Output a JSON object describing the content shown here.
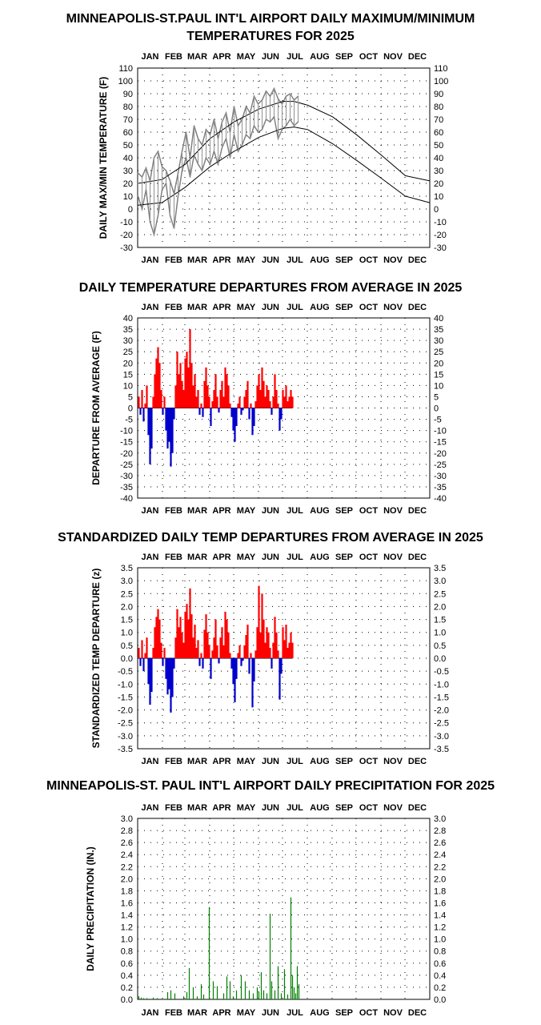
{
  "chart_data": [
    {
      "type": "line",
      "title": "MINNEAPOLIS-ST.PAUL INT'L AIRPORT DAILY MAXIMUM/MINIMUM TEMPERATURES FOR 2025",
      "title_lines": [
        "MINNEAPOLIS-ST.PAUL INT'L AIRPORT DAILY MAXIMUM/MINIMUM",
        "TEMPERATURES FOR 2025"
      ],
      "xlabel": "",
      "ylabel": "DAILY MAX/MIN TEMPERATURE (F)",
      "months": [
        "JAN",
        "FEB",
        "MAR",
        "APR",
        "MAY",
        "JUN",
        "JUL",
        "AUG",
        "SEP",
        "OCT",
        "NOV",
        "DEC"
      ],
      "ylim": [
        -30,
        110
      ],
      "yticks": [
        "110",
        "100",
        "90",
        "80",
        "70",
        "60",
        "50",
        "40",
        "30",
        "20",
        "10",
        "0",
        "-10",
        "-20",
        "-30"
      ],
      "grid": true,
      "series": [
        {
          "role": "observed_max",
          "color": "#808080",
          "x": [
            1,
            6,
            11,
            16,
            21,
            26,
            31,
            36,
            41,
            46,
            51,
            56,
            61,
            66,
            71,
            76,
            81,
            86,
            91,
            96,
            101,
            106,
            111,
            116,
            121,
            126,
            131,
            136,
            141,
            146,
            151,
            156,
            161,
            166,
            171,
            176,
            181,
            186,
            191,
            196,
            201
          ],
          "values": [
            28,
            25,
            32,
            22,
            40,
            45,
            33,
            30,
            22,
            12,
            28,
            45,
            60,
            40,
            65,
            55,
            50,
            62,
            58,
            70,
            55,
            68,
            75,
            60,
            80,
            65,
            70,
            80,
            75,
            88,
            82,
            85,
            92,
            88,
            94,
            86,
            82,
            88,
            90,
            85,
            88
          ]
        },
        {
          "role": "observed_min",
          "color": "#808080",
          "x": [
            1,
            6,
            11,
            16,
            21,
            26,
            31,
            36,
            41,
            46,
            51,
            56,
            61,
            66,
            71,
            76,
            81,
            86,
            91,
            96,
            101,
            106,
            111,
            116,
            121,
            126,
            131,
            136,
            141,
            146,
            151,
            156,
            161,
            166,
            171,
            176,
            181,
            186,
            191,
            196,
            201
          ],
          "values": [
            10,
            0,
            15,
            -10,
            -20,
            -5,
            15,
            20,
            -5,
            -15,
            10,
            30,
            40,
            25,
            42,
            35,
            30,
            40,
            35,
            45,
            35,
            48,
            55,
            40,
            58,
            45,
            50,
            58,
            55,
            65,
            60,
            62,
            70,
            68,
            72,
            55,
            62,
            65,
            70,
            65,
            68
          ]
        },
        {
          "role": "normal_max",
          "color": "#000000",
          "x": [
            1,
            31,
            60,
            91,
            121,
            152,
            182,
            196,
            213,
            244,
            274,
            305,
            335,
            365
          ],
          "values": [
            20,
            23,
            35,
            55,
            68,
            78,
            84,
            84,
            81,
            72,
            58,
            42,
            26,
            22
          ]
        },
        {
          "role": "normal_min",
          "color": "#000000",
          "x": [
            1,
            31,
            60,
            91,
            121,
            152,
            182,
            196,
            213,
            244,
            274,
            305,
            335,
            365
          ],
          "values": [
            3,
            5,
            17,
            33,
            45,
            56,
            63,
            64,
            62,
            51,
            38,
            24,
            10,
            5
          ]
        }
      ]
    },
    {
      "type": "bar",
      "title": "DAILY TEMPERATURE DEPARTURES FROM AVERAGE IN 2025",
      "xlabel": "",
      "ylabel": "DEPARTURE FROM AVERAGE (F)",
      "months": [
        "JAN",
        "FEB",
        "MAR",
        "APR",
        "MAY",
        "JUN",
        "JUL",
        "AUG",
        "SEP",
        "OCT",
        "NOV",
        "DEC"
      ],
      "ylim": [
        -40,
        40
      ],
      "yticks": [
        "40",
        "35",
        "30",
        "25",
        "20",
        "15",
        "10",
        "5",
        "0",
        "-5",
        "-10",
        "-15",
        "-20",
        "-25",
        "-30",
        "-35",
        "-40"
      ],
      "grid": true,
      "positive_color": "#ff0000",
      "negative_color": "#0000cc",
      "x": [
        2,
        4,
        6,
        8,
        10,
        12,
        14,
        16,
        18,
        20,
        22,
        24,
        26,
        28,
        30,
        32,
        34,
        36,
        38,
        40,
        42,
        44,
        46,
        48,
        50,
        52,
        54,
        56,
        58,
        60,
        62,
        64,
        66,
        68,
        70,
        72,
        74,
        76,
        78,
        80,
        82,
        84,
        86,
        88,
        90,
        92,
        94,
        96,
        98,
        100,
        102,
        104,
        106,
        108,
        110,
        112,
        114,
        116,
        118,
        120,
        122,
        124,
        126,
        128,
        130,
        132,
        134,
        136,
        138,
        140,
        142,
        144,
        146,
        148,
        150,
        152,
        154,
        156,
        158,
        160,
        162,
        164,
        166,
        168,
        170,
        172,
        174,
        176,
        178,
        180,
        182,
        184,
        186,
        188,
        190,
        192,
        194,
        196,
        198,
        200,
        202
      ],
      "values": [
        5,
        -3,
        8,
        -6,
        2,
        10,
        -12,
        -25,
        -18,
        5,
        15,
        22,
        27,
        20,
        8,
        -3,
        5,
        -10,
        -18,
        -15,
        -26,
        -20,
        -5,
        10,
        25,
        15,
        20,
        12,
        8,
        22,
        25,
        18,
        35,
        20,
        10,
        15,
        5,
        8,
        -3,
        2,
        -4,
        12,
        18,
        10,
        5,
        -8,
        3,
        8,
        15,
        5,
        -2,
        8,
        12,
        5,
        18,
        15,
        10,
        2,
        -4,
        -10,
        -15,
        -8,
        2,
        5,
        -3,
        -1,
        5,
        8,
        12,
        -5,
        2,
        -12,
        -8,
        3,
        10,
        15,
        8,
        18,
        12,
        5,
        10,
        8,
        3,
        -3,
        5,
        15,
        8,
        2,
        -10,
        -5,
        8,
        5,
        10,
        3,
        5,
        8,
        5,
        0,
        0,
        0,
        0
      ],
      "active_days": 194
    },
    {
      "type": "bar",
      "title": "STANDARDIZED DAILY TEMP DEPARTURES FROM AVERAGE IN 2025",
      "xlabel": "",
      "ylabel": "STANDARDIZED TEMP DEPARTURE (z)",
      "months": [
        "JAN",
        "FEB",
        "MAR",
        "APR",
        "MAY",
        "JUN",
        "JUL",
        "AUG",
        "SEP",
        "OCT",
        "NOV",
        "DEC"
      ],
      "ylim": [
        -3.5,
        3.5
      ],
      "yticks": [
        "3.5",
        "3.0",
        "2.5",
        "2.0",
        "1.5",
        "1.0",
        "0.5",
        "0.0",
        "-0.5",
        "-1.0",
        "-1.5",
        "-2.0",
        "-2.5",
        "-3.0",
        "-3.5"
      ],
      "grid": true,
      "positive_color": "#ff0000",
      "negative_color": "#0000cc",
      "x": [
        2,
        4,
        6,
        8,
        10,
        12,
        14,
        16,
        18,
        20,
        22,
        24,
        26,
        28,
        30,
        32,
        34,
        36,
        38,
        40,
        42,
        44,
        46,
        48,
        50,
        52,
        54,
        56,
        58,
        60,
        62,
        64,
        66,
        68,
        70,
        72,
        74,
        76,
        78,
        80,
        82,
        84,
        86,
        88,
        90,
        92,
        94,
        96,
        98,
        100,
        102,
        104,
        106,
        108,
        110,
        112,
        114,
        116,
        118,
        120,
        122,
        124,
        126,
        128,
        130,
        132,
        134,
        136,
        138,
        140,
        142,
        144,
        146,
        148,
        150,
        152,
        154,
        156,
        158,
        160,
        162,
        164,
        166,
        168,
        170,
        172,
        174,
        176,
        178,
        180,
        182,
        184,
        186,
        188,
        190,
        192,
        194,
        196,
        198,
        200,
        202
      ],
      "values": [
        0.4,
        -0.3,
        0.7,
        -0.5,
        0.2,
        0.8,
        -1.0,
        -1.8,
        -1.3,
        0.4,
        1.2,
        1.6,
        1.9,
        1.5,
        0.6,
        -0.3,
        0.4,
        -0.8,
        -1.4,
        -1.2,
        -2.1,
        -1.5,
        -0.4,
        0.8,
        1.9,
        1.2,
        1.6,
        1.0,
        0.6,
        1.8,
        2.1,
        1.5,
        2.7,
        1.7,
        0.8,
        1.3,
        0.4,
        0.7,
        -0.3,
        0.2,
        -0.4,
        1.1,
        1.7,
        1.0,
        0.5,
        -0.8,
        0.3,
        0.8,
        1.5,
        0.5,
        -0.2,
        0.8,
        1.2,
        0.5,
        1.8,
        1.5,
        1.0,
        0.2,
        -0.4,
        -1.0,
        -1.7,
        -0.8,
        0.2,
        0.5,
        -0.3,
        -0.1,
        0.5,
        0.9,
        1.3,
        -0.6,
        0.2,
        -1.9,
        -0.9,
        0.3,
        1.2,
        2.8,
        1.0,
        2.5,
        1.5,
        0.6,
        1.2,
        1.0,
        0.4,
        -0.4,
        0.6,
        1.6,
        1.0,
        0.3,
        -1.6,
        -0.6,
        1.2,
        0.7,
        1.3,
        0.4,
        0.6,
        1.0,
        0.6,
        0,
        0,
        0,
        0
      ],
      "active_days": 194
    },
    {
      "type": "bar",
      "title": "MINNEAPOLIS-ST. PAUL INT'L AIRPORT DAILY PRECIPITATION FOR 2025",
      "xlabel": "",
      "ylabel": "DAILY PRECIPITATION (IN.)",
      "months": [
        "JAN",
        "FEB",
        "MAR",
        "APR",
        "MAY",
        "JUN",
        "JUL",
        "AUG",
        "SEP",
        "OCT",
        "NOV",
        "DEC"
      ],
      "ylim": [
        0.0,
        3.0
      ],
      "yticks": [
        "3.0",
        "2.8",
        "2.6",
        "2.4",
        "2.2",
        "2.0",
        "1.8",
        "1.6",
        "1.4",
        "1.2",
        "1.0",
        "0.8",
        "0.6",
        "0.4",
        "0.2",
        "0.0"
      ],
      "grid": true,
      "color": "#008000",
      "x": [
        2,
        5,
        8,
        12,
        15,
        20,
        25,
        30,
        38,
        42,
        47,
        58,
        62,
        65,
        70,
        75,
        80,
        83,
        90,
        95,
        100,
        108,
        112,
        116,
        120,
        124,
        130,
        135,
        140,
        145,
        150,
        152,
        155,
        158,
        162,
        166,
        168,
        172,
        176,
        180,
        184,
        188,
        192,
        194,
        196,
        198,
        200,
        202
      ],
      "values": [
        0.05,
        0.03,
        0.02,
        0.02,
        0.01,
        0.03,
        0.02,
        0.01,
        0.12,
        0.15,
        0.1,
        0.05,
        0.12,
        0.52,
        0.2,
        0.05,
        0.25,
        0.08,
        1.53,
        0.3,
        0.22,
        0.1,
        0.38,
        0.3,
        0.05,
        0.15,
        0.4,
        0.3,
        0.15,
        0.1,
        0.2,
        0.12,
        0.45,
        0.15,
        0.1,
        1.42,
        0.3,
        0.15,
        0.55,
        0.1,
        0.5,
        0.08,
        1.69,
        0.4,
        0.2,
        0.1,
        0.55,
        0.25
      ]
    }
  ]
}
